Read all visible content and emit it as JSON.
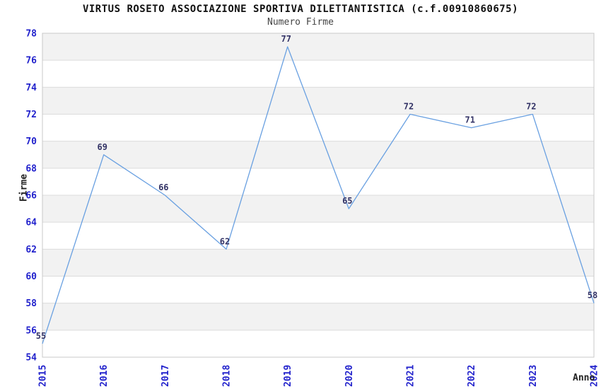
{
  "chart_data": {
    "type": "line",
    "title": "VIRTUS ROSETO ASSOCIAZIONE SPORTIVA DILETTANTISTICA (c.f.00910860675)",
    "subtitle": "Numero Firme",
    "xlabel": "Anno",
    "ylabel": "Firme",
    "x": [
      "2015",
      "2016",
      "2017",
      "2018",
      "2019",
      "2020",
      "2021",
      "2022",
      "2023",
      "2024"
    ],
    "series": [
      {
        "name": "Numero Firme",
        "values": [
          55,
          69,
          66,
          62,
          77,
          65,
          72,
          71,
          72,
          58
        ]
      }
    ],
    "ylim": [
      54,
      78
    ],
    "ytick_step": 2,
    "yticks": [
      54,
      56,
      58,
      60,
      62,
      64,
      66,
      68,
      70,
      72,
      74,
      76,
      78
    ],
    "grid": "horizontal-lines-with-alternating-bands",
    "legend_position": "none",
    "colors": {
      "line": "#69a0e1",
      "tick_label": "#2222cc",
      "value_label": "#333366",
      "band": "#f2f2f2",
      "grid_line": "#dcdcdc",
      "plot_border": "#c8c8c8",
      "background": "#ffffff"
    }
  }
}
